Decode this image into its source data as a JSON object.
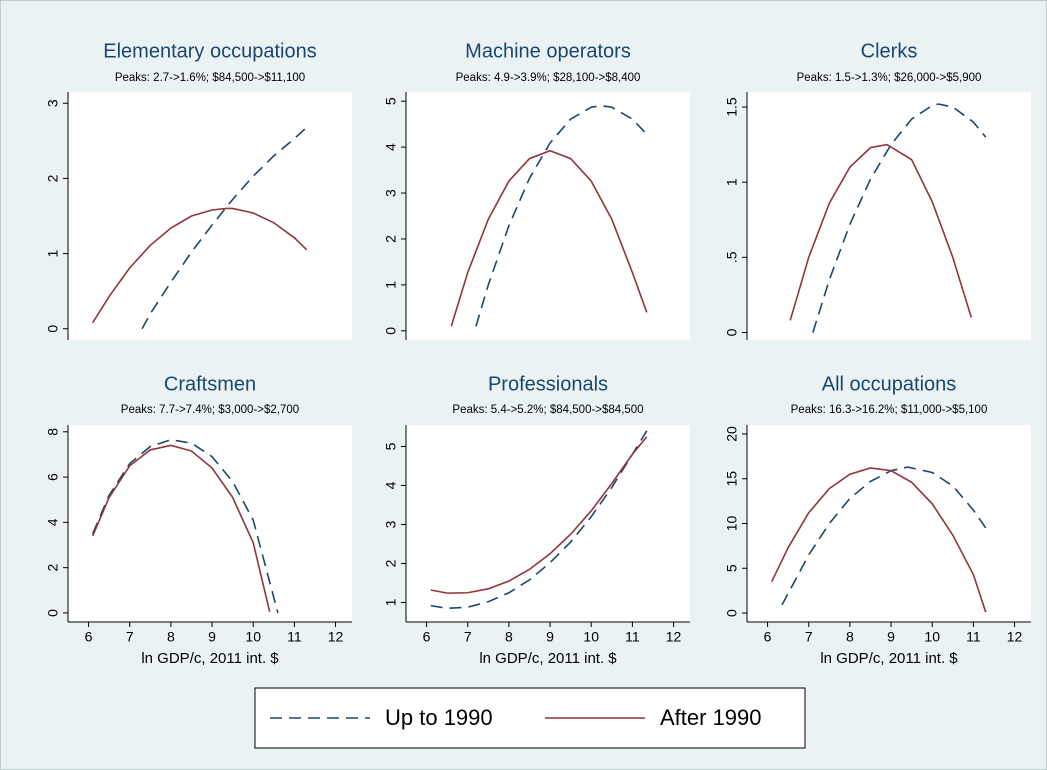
{
  "chart_data": [
    {
      "type": "line",
      "title": "Elementary occupations",
      "subtitle": "Peaks: 2.7->1.6%; $84,500->$11,100",
      "xlim": [
        5.5,
        12.4
      ],
      "ylim": [
        -0.15,
        3.15
      ],
      "yticks": [
        0,
        1,
        2,
        3
      ],
      "series": [
        {
          "name": "Up to 1990",
          "color": "#1a476f",
          "line_style": "dashed",
          "x": [
            7.3,
            7.5,
            8,
            8.5,
            9,
            9.5,
            10,
            10.5,
            11,
            11.3
          ],
          "values": [
            0,
            0.2,
            0.62,
            1.02,
            1.38,
            1.72,
            2.03,
            2.3,
            2.53,
            2.68
          ]
        },
        {
          "name": "After 1990",
          "color": "#90353b",
          "line_style": "solid",
          "x": [
            6.1,
            6.5,
            7,
            7.5,
            8,
            8.5,
            9,
            9.35,
            9.5,
            10,
            10.5,
            11,
            11.3
          ],
          "values": [
            0.08,
            0.43,
            0.81,
            1.11,
            1.34,
            1.5,
            1.58,
            1.6,
            1.6,
            1.54,
            1.41,
            1.21,
            1.05
          ]
        }
      ]
    },
    {
      "type": "line",
      "title": "Machine operators",
      "subtitle": "Peaks: 4.9->3.9%; $28,100->$8,400",
      "xlim": [
        5.5,
        12.4
      ],
      "ylim": [
        -0.2,
        5.2
      ],
      "yticks": [
        0,
        1,
        2,
        3,
        4,
        5
      ],
      "series": [
        {
          "color": "#1a476f",
          "line_style": "dashed",
          "x": [
            7.2,
            7.5,
            8,
            8.5,
            9,
            9.5,
            10,
            10.25,
            10.5,
            11,
            11.35
          ],
          "values": [
            0.1,
            1.0,
            2.29,
            3.32,
            4.09,
            4.61,
            4.87,
            4.9,
            4.87,
            4.61,
            4.28
          ]
        },
        {
          "color": "#90353b",
          "line_style": "solid",
          "x": [
            6.6,
            7,
            7.5,
            8,
            8.5,
            9,
            9.5,
            10,
            10.5,
            11,
            11.35
          ],
          "values": [
            0.1,
            1.27,
            2.43,
            3.26,
            3.75,
            3.92,
            3.75,
            3.26,
            2.43,
            1.27,
            0.4
          ]
        }
      ]
    },
    {
      "type": "line",
      "title": "Clerks",
      "subtitle": "Peaks: 1.5->1.3%; $26,000->$5,900",
      "xlim": [
        5.5,
        12.4
      ],
      "ylim": [
        -0.05,
        1.6
      ],
      "yticks": [
        0,
        {
          "value": 0.5,
          "label": ".5"
        },
        1,
        1.5
      ],
      "series": [
        {
          "color": "#1a476f",
          "line_style": "dashed",
          "x": [
            7.1,
            7.5,
            8,
            8.5,
            9,
            9.5,
            10,
            10.15,
            10.5,
            11,
            11.3
          ],
          "values": [
            0,
            0.35,
            0.72,
            1.02,
            1.25,
            1.42,
            1.51,
            1.52,
            1.5,
            1.4,
            1.3
          ]
        },
        {
          "color": "#90353b",
          "line_style": "solid",
          "x": [
            6.55,
            7,
            7.5,
            8,
            8.5,
            8.9,
            9.5,
            10,
            10.5,
            10.95
          ],
          "values": [
            0.08,
            0.5,
            0.86,
            1.1,
            1.23,
            1.25,
            1.15,
            0.87,
            0.5,
            0.1
          ]
        }
      ]
    },
    {
      "type": "line",
      "title": "Craftsmen",
      "subtitle": "Peaks: 7.7->7.4%; $3,000->$2,700",
      "xlim": [
        5.5,
        12.4
      ],
      "ylim": [
        -0.4,
        8.3
      ],
      "yticks": [
        0,
        2,
        4,
        6,
        8
      ],
      "xticks": [
        6,
        7,
        8,
        9,
        10,
        11,
        12
      ],
      "x_label": "ln GDP/c, 2011 int. $",
      "series": [
        {
          "color": "#1a476f",
          "line_style": "dashed",
          "x": [
            6.1,
            6.5,
            7,
            7.5,
            8,
            8.5,
            9,
            9.5,
            10,
            10.6
          ],
          "values": [
            3.5,
            5.2,
            6.6,
            7.35,
            7.65,
            7.5,
            6.9,
            5.8,
            4.1,
            0
          ]
        },
        {
          "color": "#90353b",
          "line_style": "solid",
          "x": [
            6.1,
            6.5,
            7,
            7.5,
            8,
            8.5,
            9,
            9.5,
            10,
            10.4
          ],
          "values": [
            3.4,
            5.1,
            6.5,
            7.2,
            7.4,
            7.15,
            6.4,
            5.1,
            3.1,
            0.05
          ]
        }
      ]
    },
    {
      "type": "line",
      "title": "Professionals",
      "subtitle": "Peaks: 5.4->5.2%; $84,500->$84,500",
      "xlim": [
        5.5,
        12.4
      ],
      "ylim": [
        0.5,
        5.55
      ],
      "yticks": [
        1,
        2,
        3,
        4,
        5
      ],
      "xticks": [
        6,
        7,
        8,
        9,
        10,
        11,
        12
      ],
      "x_label": "ln GDP/c, 2011 int. $",
      "series": [
        {
          "color": "#1a476f",
          "line_style": "dashed",
          "x": [
            6.1,
            6.5,
            7,
            7.5,
            8,
            8.5,
            9,
            9.5,
            10,
            10.5,
            11,
            11.35
          ],
          "values": [
            0.92,
            0.85,
            0.88,
            1.02,
            1.25,
            1.58,
            2.02,
            2.55,
            3.2,
            3.95,
            4.8,
            5.4
          ]
        },
        {
          "color": "#90353b",
          "line_style": "solid",
          "x": [
            6.1,
            6.5,
            7,
            7.5,
            8,
            8.5,
            9,
            9.5,
            10,
            10.5,
            11,
            11.35
          ],
          "values": [
            1.32,
            1.24,
            1.25,
            1.35,
            1.55,
            1.85,
            2.25,
            2.75,
            3.35,
            4.05,
            4.8,
            5.25
          ]
        }
      ]
    },
    {
      "type": "line",
      "title": "All occupations",
      "subtitle": "Peaks: 16.3->16.2%; $11,000->$5,100",
      "xlim": [
        5.5,
        12.4
      ],
      "ylim": [
        -1,
        21
      ],
      "yticks": [
        0,
        5,
        10,
        15,
        20
      ],
      "xticks": [
        6,
        7,
        8,
        9,
        10,
        11,
        12
      ],
      "x_label": "ln GDP/c, 2011 int. $",
      "series": [
        {
          "color": "#1a476f",
          "line_style": "dashed",
          "x": [
            6.35,
            7,
            7.5,
            8,
            8.5,
            9,
            9.4,
            10,
            10.5,
            11,
            11.3
          ],
          "values": [
            0.9,
            6.5,
            10.0,
            12.8,
            14.7,
            15.9,
            16.3,
            15.7,
            14.2,
            11.5,
            9.5
          ]
        },
        {
          "color": "#90353b",
          "line_style": "solid",
          "x": [
            6.1,
            6.5,
            7,
            7.5,
            8,
            8.5,
            9,
            9.5,
            10,
            10.5,
            11,
            11.3
          ],
          "values": [
            3.5,
            7.3,
            11.2,
            13.9,
            15.5,
            16.2,
            15.9,
            14.6,
            12.2,
            8.7,
            4.3,
            0.1
          ]
        }
      ]
    }
  ]
}
